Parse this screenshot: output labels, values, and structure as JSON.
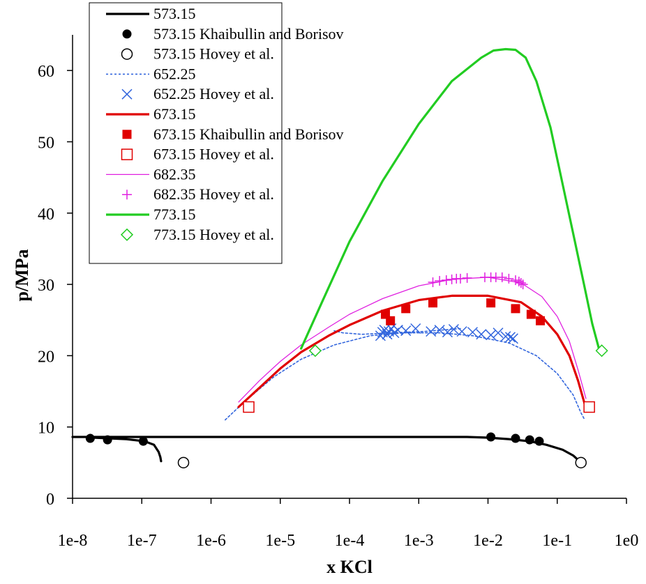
{
  "chart_data": {
    "type": "line",
    "title": "",
    "xlabel": "x KCl",
    "ylabel": "p/MPa",
    "x_scale": "log",
    "xlim": [
      1e-08,
      1
    ],
    "ylim": [
      0,
      65
    ],
    "xticks": [
      1e-08,
      1e-07,
      1e-06,
      1e-05,
      0.0001,
      0.001,
      0.01,
      0.1,
      1
    ],
    "xtick_labels": [
      "1e-8",
      "1e-7",
      "1e-6",
      "1e-5",
      "1e-4",
      "1e-3",
      "1e-2",
      "1e-1",
      "1e0"
    ],
    "yticks": [
      0,
      10,
      20,
      30,
      40,
      50,
      60
    ],
    "ytick_labels": [
      "0",
      "10",
      "20",
      "30",
      "40",
      "50",
      "60"
    ],
    "grid": false,
    "legend_position": "top-left",
    "series": [
      {
        "name": "573.15",
        "kind": "line",
        "color": "#000000",
        "style": "solid",
        "segments": [
          [
            [
              1e-08,
              8.6
            ],
            [
              1e-07,
              8.6
            ],
            [
              1e-06,
              8.6
            ],
            [
              1e-05,
              8.6
            ],
            [
              0.0001,
              8.6
            ],
            [
              0.001,
              8.6
            ],
            [
              0.005,
              8.6
            ],
            [
              0.01,
              8.5
            ],
            [
              0.02,
              8.3
            ],
            [
              0.04,
              8.0
            ],
            [
              0.07,
              7.5
            ],
            [
              0.12,
              6.8
            ],
            [
              0.17,
              6.0
            ],
            [
              0.21,
              5.2
            ]
          ],
          [
            [
              2e-08,
              8.5
            ],
            [
              6e-08,
              8.3
            ],
            [
              1.1e-07,
              8.0
            ],
            [
              1.5e-07,
              7.5
            ],
            [
              1.75e-07,
              6.5
            ],
            [
              1.85e-07,
              5.8
            ],
            [
              1.9e-07,
              5.2
            ]
          ]
        ]
      },
      {
        "name": "573.15 Khaibullin and Borisov",
        "kind": "marker",
        "marker": "filled-circle",
        "color": "#000000",
        "points": [
          [
            1.8e-08,
            8.4
          ],
          [
            3.2e-08,
            8.2
          ],
          [
            1.05e-07,
            8.0
          ],
          [
            0.011,
            8.6
          ],
          [
            0.025,
            8.4
          ],
          [
            0.04,
            8.2
          ],
          [
            0.055,
            8.0
          ]
        ]
      },
      {
        "name": "573.15 Hovey et al.",
        "kind": "marker",
        "marker": "open-circle",
        "color": "#000000",
        "points": [
          [
            4e-07,
            5.0
          ],
          [
            0.22,
            5.0
          ]
        ]
      },
      {
        "name": "652.25",
        "kind": "line",
        "color": "#3366dd",
        "style": "dotted",
        "segments": [
          [
            [
              1.6e-06,
              11.0
            ],
            [
              3e-06,
              13.5
            ],
            [
              8e-06,
              17.0
            ],
            [
              2e-05,
              19.5
            ],
            [
              6e-05,
              21.5
            ],
            [
              0.0002,
              22.8
            ],
            [
              0.0006,
              23.2
            ],
            [
              0.002,
              23.2
            ],
            [
              0.006,
              22.8
            ],
            [
              0.02,
              21.8
            ],
            [
              0.05,
              20.0
            ],
            [
              0.1,
              17.5
            ],
            [
              0.17,
              14.5
            ],
            [
              0.22,
              12.0
            ],
            [
              0.25,
              11.0
            ]
          ],
          [
            [
              0.004,
              23.8
            ],
            [
              0.0012,
              23.4
            ],
            [
              0.0004,
              23.2
            ],
            [
              0.00015,
              23.0
            ],
            [
              8e-05,
              23.2
            ],
            [
              6e-05,
              23.5
            ]
          ]
        ]
      },
      {
        "name": "652.25 Hovey et al.",
        "kind": "marker",
        "marker": "x",
        "color": "#3366dd",
        "points": [
          [
            0.00028,
            22.8
          ],
          [
            0.0003,
            23.3
          ],
          [
            0.00032,
            23.6
          ],
          [
            0.00035,
            23.0
          ],
          [
            0.00037,
            23.4
          ],
          [
            0.0004,
            23.8
          ],
          [
            0.00044,
            23.2
          ],
          [
            0.0005,
            23.6
          ],
          [
            0.00065,
            23.5
          ],
          [
            0.0009,
            23.8
          ],
          [
            0.0015,
            23.4
          ],
          [
            0.002,
            23.6
          ],
          [
            0.0026,
            23.3
          ],
          [
            0.0032,
            23.7
          ],
          [
            0.0042,
            23.4
          ],
          [
            0.006,
            23.3
          ],
          [
            0.008,
            23.0
          ],
          [
            0.011,
            22.9
          ],
          [
            0.014,
            23.2
          ],
          [
            0.018,
            22.7
          ],
          [
            0.021,
            22.6
          ],
          [
            0.023,
            22.4
          ]
        ]
      },
      {
        "name": "673.15",
        "kind": "line",
        "color": "#e00000",
        "style": "solid",
        "segments": [
          [
            [
              2.5e-06,
              12.8
            ],
            [
              5e-06,
              15.5
            ],
            [
              1e-05,
              18.2
            ],
            [
              2e-05,
              20.5
            ],
            [
              5e-05,
              22.8
            ],
            [
              0.0001,
              24.3
            ],
            [
              0.0003,
              26.3
            ],
            [
              0.001,
              27.8
            ],
            [
              0.003,
              28.4
            ],
            [
              0.01,
              28.4
            ],
            [
              0.03,
              27.5
            ],
            [
              0.06,
              25.5
            ],
            [
              0.1,
              23.0
            ],
            [
              0.15,
              20.0
            ],
            [
              0.2,
              16.5
            ],
            [
              0.25,
              13.2
            ]
          ]
        ]
      },
      {
        "name": "673.15 Khaibullin and Borisov",
        "kind": "marker",
        "marker": "filled-square",
        "color": "#e00000",
        "points": [
          [
            0.00033,
            25.8
          ],
          [
            0.00039,
            24.9
          ],
          [
            0.00065,
            26.6
          ],
          [
            0.0016,
            27.4
          ],
          [
            0.011,
            27.4
          ],
          [
            0.025,
            26.6
          ],
          [
            0.042,
            25.8
          ],
          [
            0.057,
            24.9
          ]
        ]
      },
      {
        "name": "673.15 Hovey et al.",
        "kind": "marker",
        "marker": "open-square",
        "color": "#e00000",
        "points": [
          [
            3.5e-06,
            12.8
          ],
          [
            0.29,
            12.8
          ]
        ]
      },
      {
        "name": "682.35",
        "kind": "line",
        "color": "#e020e0",
        "style": "solid",
        "segments": [
          [
            [
              2.5e-06,
              13.5
            ],
            [
              5e-06,
              16.5
            ],
            [
              1e-05,
              19.2
            ],
            [
              2e-05,
              21.5
            ],
            [
              5e-05,
              24.0
            ],
            [
              0.0001,
              25.8
            ],
            [
              0.0003,
              28.0
            ],
            [
              0.001,
              29.8
            ],
            [
              0.003,
              30.7
            ],
            [
              0.01,
              31.0
            ],
            [
              0.03,
              30.2
            ],
            [
              0.06,
              28.3
            ],
            [
              0.1,
              25.5
            ],
            [
              0.15,
              22.0
            ],
            [
              0.2,
              18.0
            ],
            [
              0.26,
              14.0
            ]
          ]
        ]
      },
      {
        "name": "682.35 Hovey et al.",
        "kind": "marker",
        "marker": "plus",
        "color": "#e020e0",
        "points": [
          [
            0.0016,
            30.3
          ],
          [
            0.002,
            30.5
          ],
          [
            0.0025,
            30.6
          ],
          [
            0.003,
            30.7
          ],
          [
            0.0035,
            30.8
          ],
          [
            0.004,
            30.8
          ],
          [
            0.005,
            30.9
          ],
          [
            0.009,
            31.0
          ],
          [
            0.011,
            31.0
          ],
          [
            0.013,
            31.0
          ],
          [
            0.016,
            31.0
          ],
          [
            0.02,
            30.8
          ],
          [
            0.025,
            30.6
          ],
          [
            0.028,
            30.4
          ],
          [
            0.03,
            30.2
          ],
          [
            0.032,
            30.0
          ]
        ]
      },
      {
        "name": "773.15",
        "kind": "line",
        "color": "#22cc22",
        "style": "solid",
        "segments": [
          [
            [
              2e-05,
              21.0
            ],
            [
              4e-05,
              27.5
            ],
            [
              0.0001,
              36.0
            ],
            [
              0.0003,
              44.5
            ],
            [
              0.001,
              52.5
            ],
            [
              0.003,
              58.5
            ],
            [
              0.008,
              61.8
            ],
            [
              0.012,
              62.8
            ],
            [
              0.018,
              63.0
            ],
            [
              0.025,
              62.9
            ],
            [
              0.035,
              61.8
            ],
            [
              0.05,
              58.5
            ],
            [
              0.08,
              52.0
            ],
            [
              0.12,
              44.0
            ],
            [
              0.18,
              36.0
            ],
            [
              0.25,
              29.5
            ],
            [
              0.32,
              24.5
            ],
            [
              0.4,
              21.0
            ]
          ]
        ]
      },
      {
        "name": "773.15 Hovey et al.",
        "kind": "marker",
        "marker": "open-diamond",
        "color": "#22cc22",
        "points": [
          [
            3.2e-05,
            20.7
          ],
          [
            0.44,
            20.7
          ]
        ]
      }
    ]
  }
}
